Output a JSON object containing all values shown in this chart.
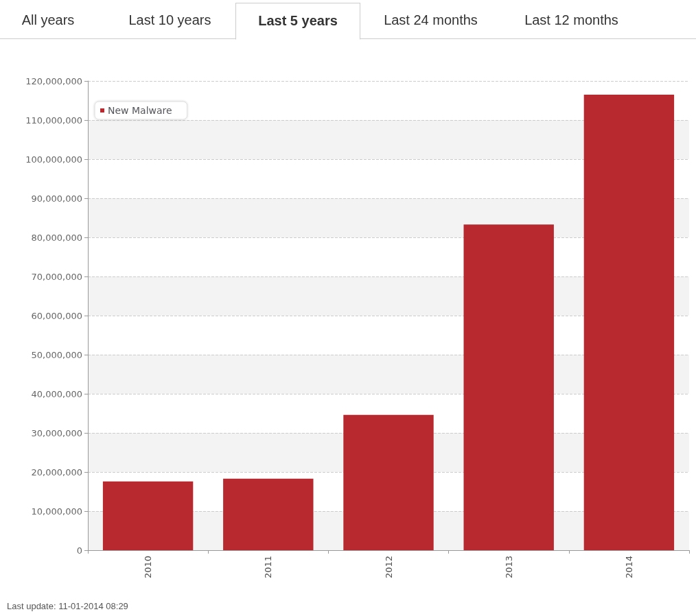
{
  "chart_data": {
    "type": "bar",
    "categories": [
      "2010",
      "2011",
      "2012",
      "2013",
      "2014"
    ],
    "series": [
      {
        "name": "New Malware",
        "color": "#b8292f",
        "values": [
          17600000,
          18300000,
          34600000,
          83300000,
          116500000
        ]
      }
    ],
    "ylim": [
      0,
      120000000
    ],
    "yticks": [
      {
        "value": 0,
        "label": "0"
      },
      {
        "value": 10000000,
        "label": "10,000,000"
      },
      {
        "value": 20000000,
        "label": "20,000,000"
      },
      {
        "value": 30000000,
        "label": "30,000,000"
      },
      {
        "value": 40000000,
        "label": "40,000,000"
      },
      {
        "value": 50000000,
        "label": "50,000,000"
      },
      {
        "value": 60000000,
        "label": "60,000,000"
      },
      {
        "value": 70000000,
        "label": "70,000,000"
      },
      {
        "value": 80000000,
        "label": "80,000,000"
      },
      {
        "value": 90000000,
        "label": "90,000,000"
      },
      {
        "value": 100000000,
        "label": "100,000,000"
      },
      {
        "value": 110000000,
        "label": "110,000,000"
      },
      {
        "value": 120000000,
        "label": "120,000,000"
      }
    ],
    "grid": "y",
    "legend": "top left",
    "annotations": [
      "All years",
      "Last 10 years",
      "Last 5 years",
      "Last 24 months",
      "Last 12 months",
      "Last update: 11-01-2014 08:29"
    ]
  }
}
